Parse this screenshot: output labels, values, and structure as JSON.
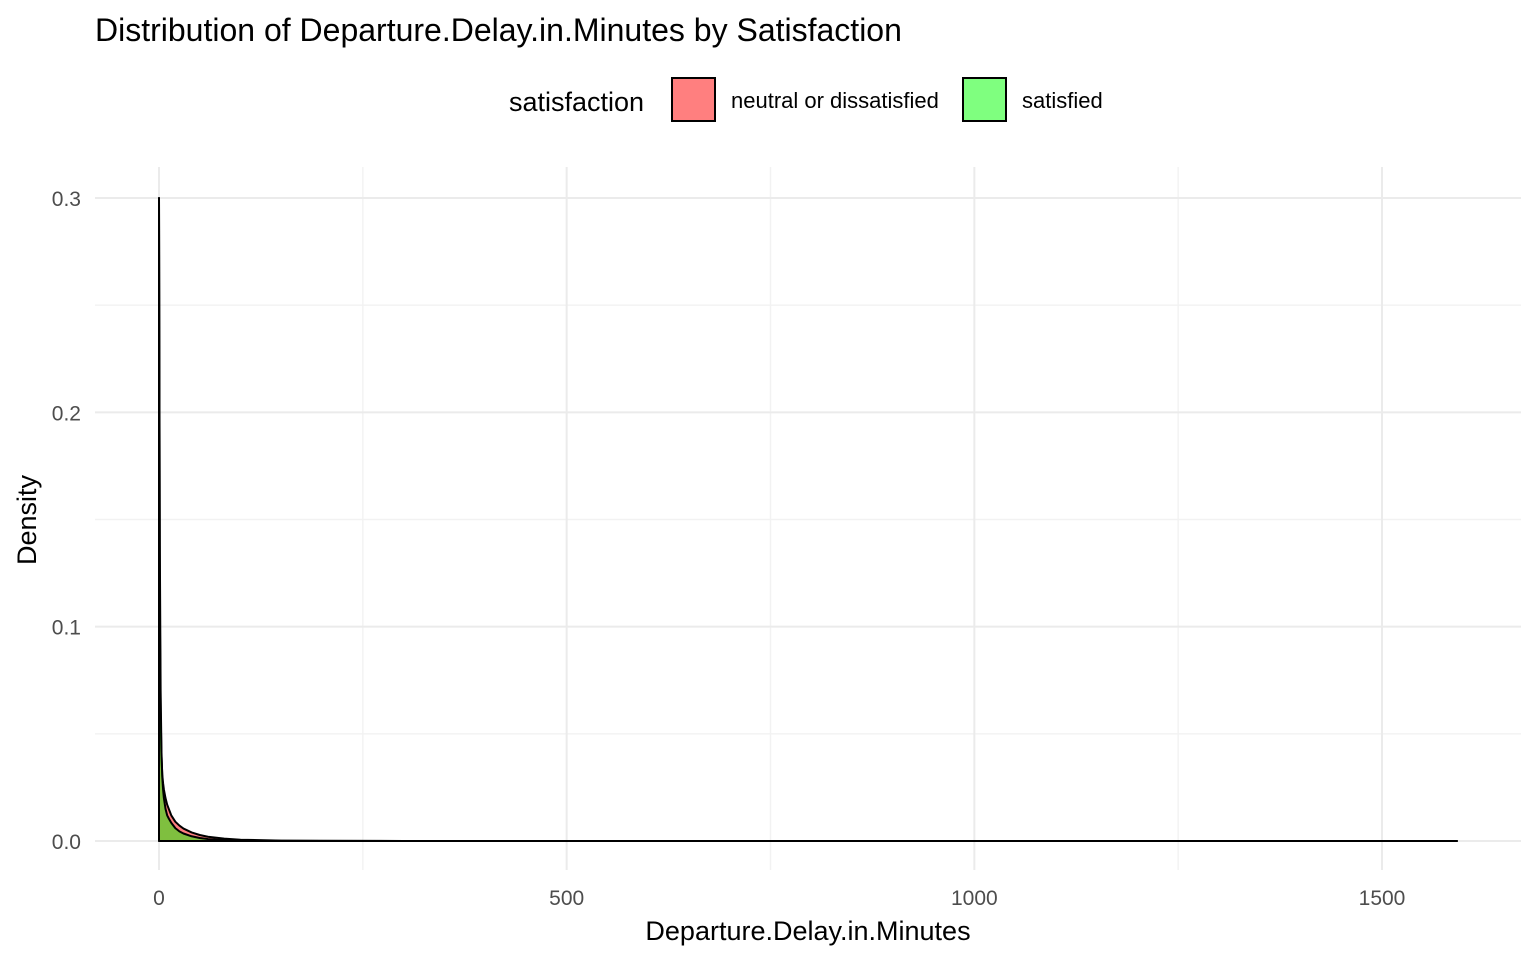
{
  "chart_data": {
    "type": "area",
    "title": "Distribution of Departure.Delay.in.Minutes by Satisfaction",
    "xlabel": "Departure.Delay.in.Minutes",
    "ylabel": "Density",
    "xlim": [
      -30,
      1620
    ],
    "ylim": [
      -0.013,
      0.312
    ],
    "x_ticks": [
      0,
      500,
      1000,
      1500
    ],
    "x_tick_labels": [
      "0",
      "500",
      "1000",
      "1500"
    ],
    "y_ticks": [
      0.0,
      0.1,
      0.2,
      0.3
    ],
    "y_tick_labels": [
      "0.0",
      "0.1",
      "0.2",
      "0.3"
    ],
    "grid": true,
    "legend": {
      "title": "satisfaction",
      "position": "top",
      "entries": [
        {
          "label": "neutral or dissatisfied",
          "color": "#ff7f7f"
        },
        {
          "label": "satisfied",
          "color": "#7fff7f"
        }
      ]
    },
    "series": [
      {
        "name": "neutral or dissatisfied",
        "color": "#ff0000",
        "x": [
          0,
          0.5,
          1,
          2,
          3,
          4,
          5,
          6,
          8,
          10,
          12,
          15,
          20,
          25,
          30,
          40,
          50,
          60,
          80,
          100,
          150,
          200,
          300,
          500,
          1000,
          1592
        ],
        "y": [
          0.3,
          0.22,
          0.105,
          0.06,
          0.04,
          0.031,
          0.027,
          0.024,
          0.02,
          0.017,
          0.015,
          0.012,
          0.009,
          0.0072,
          0.0058,
          0.004,
          0.0028,
          0.002,
          0.0011,
          0.0006,
          0.0002,
          0.0001,
          3e-05,
          1e-05,
          0,
          0
        ]
      },
      {
        "name": "satisfied",
        "color": "#00ff00",
        "x": [
          0,
          0.5,
          1,
          2,
          3,
          4,
          5,
          6,
          8,
          10,
          12,
          15,
          20,
          25,
          30,
          40,
          50,
          60,
          80,
          100,
          150,
          200,
          300,
          500,
          1000,
          1592
        ],
        "y": [
          0.3,
          0.22,
          0.138,
          0.07,
          0.042,
          0.03,
          0.024,
          0.02,
          0.015,
          0.012,
          0.0105,
          0.0085,
          0.006,
          0.0045,
          0.0035,
          0.0022,
          0.0014,
          0.0009,
          0.0004,
          0.0002,
          5e-05,
          2e-05,
          0,
          0,
          0,
          0
        ]
      }
    ]
  }
}
